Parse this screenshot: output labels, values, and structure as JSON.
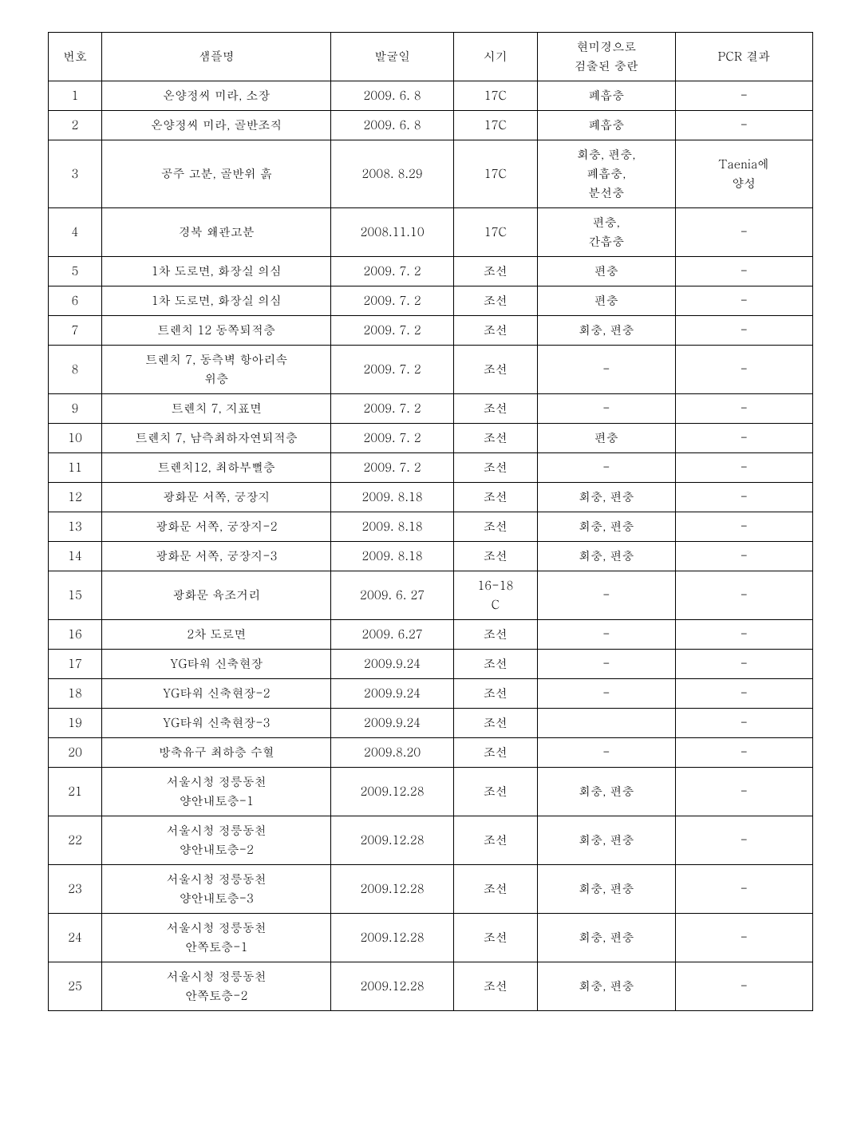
{
  "table": {
    "columns": [
      "번호",
      "샘플명",
      "발굴일",
      "시기",
      "현미경으로\n검출된 충란",
      "PCR 결과"
    ],
    "rows": [
      {
        "num": "1",
        "name": "온양정씨 미라, 소장",
        "date": "2009. 6. 8",
        "period": "17C",
        "micro": "폐흡충",
        "pcr": "-"
      },
      {
        "num": "2",
        "name": "온양정씨 미라, 골반조직",
        "date": "2009. 6. 8",
        "period": "17C",
        "micro": "폐흡충",
        "pcr": "-"
      },
      {
        "num": "3",
        "name": "공주 고분, 골반위 흙",
        "date": "2008. 8.29",
        "period": "17C",
        "micro": "회충, 편충,\n폐흡충,\n분선충",
        "pcr": "Taenia에\n양성"
      },
      {
        "num": "4",
        "name": "경북 왜관고분",
        "date": "2008.11.10",
        "period": "17C",
        "micro": "편충,\n간흡충",
        "pcr": "-"
      },
      {
        "num": "5",
        "name": "1차 도로면, 화장실 의심",
        "date": "2009. 7. 2",
        "period": "조선",
        "micro": "편충",
        "pcr": "-"
      },
      {
        "num": "6",
        "name": "1차 도로면, 화장실 의심",
        "date": "2009. 7. 2",
        "period": "조선",
        "micro": "편충",
        "pcr": "-"
      },
      {
        "num": "7",
        "name": "트렌치 12 동쪽퇴적층",
        "date": "2009. 7. 2",
        "period": "조선",
        "micro": "회충, 편충",
        "pcr": "-"
      },
      {
        "num": "8",
        "name": "트렌치 7, 동측벽 항아리속\n위층",
        "date": "2009. 7. 2",
        "period": "조선",
        "micro": "-",
        "pcr": "-"
      },
      {
        "num": "9",
        "name": "트렌치 7, 지표면",
        "date": "2009. 7. 2",
        "period": "조선",
        "micro": "-",
        "pcr": "-"
      },
      {
        "num": "10",
        "name": "트렌치 7, 남측최하자연퇴적층",
        "date": "2009. 7. 2",
        "period": "조선",
        "micro": "편충",
        "pcr": "-"
      },
      {
        "num": "11",
        "name": "트렌치12, 최하부뻘층",
        "date": "2009. 7. 2",
        "period": "조선",
        "micro": "-",
        "pcr": "-"
      },
      {
        "num": "12",
        "name": "광화문 서쪽, 궁장지",
        "date": "2009. 8.18",
        "period": "조선",
        "micro": "회충, 편충",
        "pcr": "-"
      },
      {
        "num": "13",
        "name": "광화문 서쪽, 궁장지-2",
        "date": "2009. 8.18",
        "period": "조선",
        "micro": "회충, 편충",
        "pcr": "-"
      },
      {
        "num": "14",
        "name": "광화문 서쪽, 궁장지-3",
        "date": "2009. 8.18",
        "period": "조선",
        "micro": "회충, 편충",
        "pcr": "-"
      },
      {
        "num": "15",
        "name": "광화문 육조거리",
        "date": "2009. 6. 27",
        "period": "16-18\nC",
        "micro": "-",
        "pcr": "-"
      },
      {
        "num": "16",
        "name": "2차 도로면",
        "date": "2009. 6.27",
        "period": "조선",
        "micro": "-",
        "pcr": "-"
      },
      {
        "num": "17",
        "name": "YG타워 신축현장",
        "date": "2009.9.24",
        "period": "조선",
        "micro": "-",
        "pcr": "-"
      },
      {
        "num": "18",
        "name": "YG타워 신축현장-2",
        "date": "2009.9.24",
        "period": "조선",
        "micro": "-",
        "pcr": "-"
      },
      {
        "num": "19",
        "name": "YG타워 신축현장-3",
        "date": "2009.9.24",
        "period": "조선",
        "micro": "",
        "pcr": "-"
      },
      {
        "num": "20",
        "name": "방축유구 최하층 수혈",
        "date": "2009.8.20",
        "period": "조선",
        "micro": "-",
        "pcr": "-"
      },
      {
        "num": "21",
        "name": "서울시청 정릉동천\n양안내토층-1",
        "date": "2009.12.28",
        "period": "조선",
        "micro": "회충, 편충",
        "pcr": "-"
      },
      {
        "num": "22",
        "name": "서울시청 정릉동천\n양안내토층-2",
        "date": "2009.12.28",
        "period": "조선",
        "micro": "회충, 편충",
        "pcr": "-"
      },
      {
        "num": "23",
        "name": "서울시청 정릉동천\n양안내토층-3",
        "date": "2009.12.28",
        "period": "조선",
        "micro": "회충, 편충",
        "pcr": "-"
      },
      {
        "num": "24",
        "name": "서울시청 정릉동천\n안쪽토층-1",
        "date": "2009.12.28",
        "period": "조선",
        "micro": "회충, 편충",
        "pcr": "-"
      },
      {
        "num": "25",
        "name": "서울시청 정릉동천\n안쪽토층-2",
        "date": "2009.12.28",
        "period": "조선",
        "micro": "회충, 편충",
        "pcr": "-"
      }
    ],
    "styling": {
      "border_color": "#000000",
      "background_color": "#ffffff",
      "text_color": "#000000",
      "font_family": "Batang, serif",
      "cell_fontsize": 15,
      "header_fontsize": 15,
      "col_widths_pct": [
        7,
        30,
        16,
        11,
        18,
        18
      ],
      "line_height": 1.6
    }
  }
}
